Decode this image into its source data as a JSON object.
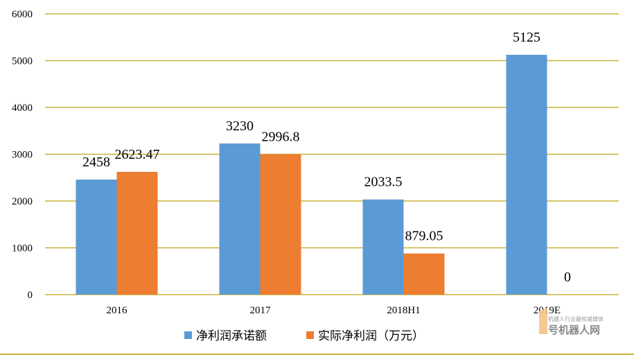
{
  "chart_data": {
    "type": "bar",
    "categories": [
      "2016",
      "2017",
      "2018H1",
      "2019E"
    ],
    "series": [
      {
        "name": "净利润承诺额",
        "values": [
          2458,
          3230,
          2033.5,
          5125
        ],
        "labels": [
          "2458",
          "3230",
          "2033.5",
          "5125"
        ],
        "color": "#5b9bd5"
      },
      {
        "name": "实际净利润（万元）",
        "values": [
          2623.47,
          2996.8,
          879.05,
          0
        ],
        "labels": [
          "2623.47",
          "2996.8",
          "879.05",
          "0"
        ],
        "color": "#ed7d31"
      }
    ],
    "ylim": [
      0,
      6000
    ],
    "yticks": [
      0,
      1000,
      2000,
      3000,
      4000,
      5000,
      6000
    ],
    "grid": true,
    "gridline_color": "#c9b037",
    "legend_position": "bottom"
  },
  "watermark": {
    "mark": "1",
    "name": "号机器人网",
    "tagline": "机器人行业最权威媒体"
  }
}
